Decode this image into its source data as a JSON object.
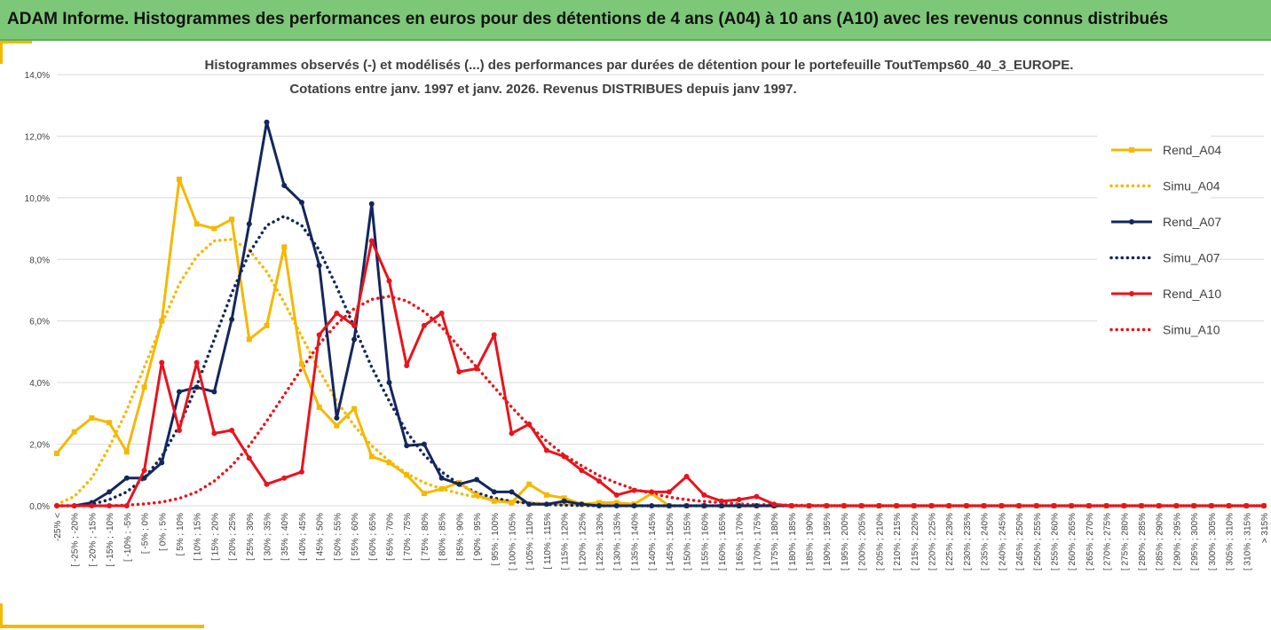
{
  "header": {
    "title": "ADAM Informe. Histogrammes des performances en euros pour des détentions de 4 ans (A04) à 10 ans (A10) avec les revenus connus distribués"
  },
  "colors": {
    "header_bg": "#7dc878",
    "accent": "#f5b800",
    "a04": "#f5b800",
    "a07": "#14275c",
    "a10": "#e8141c",
    "grid": "#d9d9d9"
  },
  "chart_data": {
    "type": "line",
    "title_line1": "Histogrammes observés (-) et modélisés (...) des performances par durées de détention pour le portefeuille ToutTemps60_40_3_EUROPE.",
    "title_line2": "Cotations entre janv. 1997 et janv. 2026. Revenus DISTRIBUES depuis janv 1997.",
    "ylim": [
      0,
      14
    ],
    "yticks": [
      "0,0%",
      "2,0%",
      "4,0%",
      "6,0%",
      "8,0%",
      "10,0%",
      "12,0%",
      "14,0%"
    ],
    "categories": [
      "-25% <",
      "[ -25% ; -20%",
      "[ -20% ; -15%",
      "[ -15% ; -10%",
      "[ -10% ; -5%",
      "[ -5% ; 0%",
      "[ 0% ; 5%",
      "[ 5% ; 10%",
      "[ 10% ; 15%",
      "[ 15% ; 20%",
      "[ 20% ; 25%",
      "[ 25% ; 30%",
      "[ 30% ; 35%",
      "[ 35% ; 40%",
      "[ 40% ; 45%",
      "[ 45% ; 50%",
      "[ 50% ; 55%",
      "[ 55% ; 60%",
      "[ 60% ; 65%",
      "[ 65% ; 70%",
      "[ 70% ; 75%",
      "[ 75% ; 80%",
      "[ 80% ; 85%",
      "[ 85% ; 90%",
      "[ 90% ; 95%",
      "[ 95% ; 100%",
      "[ 100% ; 105%",
      "[ 105% ; 110%",
      "[ 110% ; 115%",
      "[ 115% ; 120%",
      "[ 120% ; 125%",
      "[ 125% ; 130%",
      "[ 130% ; 135%",
      "[ 135% ; 140%",
      "[ 140% ; 145%",
      "[ 145% ; 150%",
      "[ 150% ; 155%",
      "[ 155% ; 160%",
      "[ 160% ; 165%",
      "[ 165% ; 170%",
      "[ 170% ; 175%",
      "[ 175% ; 180%",
      "[ 180% ; 185%",
      "[ 185% ; 190%",
      "[ 190% ; 195%",
      "[ 195% ; 200%",
      "[ 200% ; 205%",
      "[ 205% ; 210%",
      "[ 210% ; 215%",
      "[ 215% ; 220%",
      "[ 220% ; 225%",
      "[ 225% ; 230%",
      "[ 230% ; 235%",
      "[ 235% ; 240%",
      "[ 240% ; 245%",
      "[ 245% ; 250%",
      "[ 250% ; 255%",
      "[ 255% ; 260%",
      "[ 260% ; 265%",
      "[ 265% ; 270%",
      "[ 270% ; 275%",
      "[ 275% ; 280%",
      "[ 280% ; 285%",
      "[ 285% ; 290%",
      "[ 290% ; 295%",
      "[ 295% ; 300%",
      "[ 300% ; 305%",
      "[ 305% ; 310%",
      "[ 310% ; 315%",
      "> 315%"
    ],
    "legend_position": "right",
    "series": [
      {
        "name": "Rend_A04",
        "style": "solid",
        "marker": "square",
        "color": "#f5b800",
        "values": [
          1.7,
          2.4,
          2.85,
          2.7,
          1.75,
          3.85,
          6.0,
          10.6,
          9.15,
          9.0,
          9.3,
          5.4,
          5.85,
          8.4,
          4.6,
          3.2,
          2.6,
          3.15,
          1.6,
          1.4,
          1.0,
          0.4,
          0.55,
          0.75,
          0.35,
          0.15,
          0.1,
          0.7,
          0.35,
          0.25,
          0.05,
          0.1,
          0.1,
          0.05,
          0.4,
          0.0,
          0,
          0,
          0,
          0,
          0,
          0,
          0,
          0,
          0,
          0,
          0,
          0,
          0,
          0,
          0,
          0,
          0,
          0,
          0,
          0,
          0,
          0,
          0,
          0,
          0,
          0,
          0,
          0,
          0,
          0,
          0,
          0,
          0,
          0
        ]
      },
      {
        "name": "Simu_A04",
        "style": "dotted",
        "marker": "none",
        "color": "#f5b800",
        "values": [
          0.05,
          0.3,
          0.9,
          1.9,
          3.1,
          4.5,
          5.9,
          7.2,
          8.1,
          8.6,
          8.65,
          8.3,
          7.6,
          6.6,
          5.5,
          4.4,
          3.4,
          2.6,
          1.95,
          1.45,
          1.05,
          0.75,
          0.55,
          0.4,
          0.28,
          0.2,
          0.14,
          0.1,
          0.07,
          0.05,
          0.03,
          0.02,
          0.01,
          0.01,
          0.0,
          0,
          0,
          0,
          0,
          0,
          0,
          0,
          0,
          0,
          0,
          0,
          0,
          0,
          0,
          0,
          0,
          0,
          0,
          0,
          0,
          0,
          0,
          0,
          0,
          0,
          0,
          0,
          0,
          0,
          0,
          0,
          0,
          0,
          0,
          0
        ]
      },
      {
        "name": "Rend_A07",
        "style": "solid",
        "marker": "circle",
        "color": "#14275c",
        "values": [
          0,
          0,
          0.1,
          0.45,
          0.9,
          0.9,
          1.4,
          3.7,
          3.85,
          3.7,
          6.05,
          9.15,
          12.45,
          10.4,
          9.85,
          7.8,
          2.85,
          5.4,
          9.8,
          4.0,
          1.95,
          2.0,
          0.9,
          0.7,
          0.85,
          0.45,
          0.45,
          0.05,
          0.05,
          0.15,
          0.05,
          0.0,
          0.0,
          0.0,
          0,
          0,
          0,
          0,
          0,
          0,
          0,
          0,
          0,
          0,
          0,
          0,
          0,
          0,
          0,
          0,
          0,
          0,
          0,
          0,
          0,
          0,
          0,
          0,
          0,
          0,
          0,
          0,
          0,
          0,
          0,
          0,
          0,
          0,
          0,
          0
        ]
      },
      {
        "name": "Simu_A07",
        "style": "dotted",
        "marker": "none",
        "color": "#14275c",
        "values": [
          0,
          0,
          0.05,
          0.2,
          0.45,
          0.9,
          1.6,
          2.6,
          3.9,
          5.4,
          6.9,
          8.2,
          9.1,
          9.4,
          9.1,
          8.3,
          7.1,
          5.8,
          4.5,
          3.4,
          2.4,
          1.65,
          1.1,
          0.7,
          0.42,
          0.25,
          0.14,
          0.08,
          0.04,
          0.02,
          0.01,
          0.0,
          0,
          0,
          0,
          0,
          0,
          0,
          0,
          0,
          0,
          0,
          0,
          0,
          0,
          0,
          0,
          0,
          0,
          0,
          0,
          0,
          0,
          0,
          0,
          0,
          0,
          0,
          0,
          0,
          0,
          0,
          0,
          0,
          0,
          0,
          0,
          0,
          0,
          0
        ]
      },
      {
        "name": "Rend_A10",
        "style": "solid",
        "marker": "circle",
        "color": "#e8141c",
        "values": [
          0,
          0,
          0,
          0,
          0,
          1.15,
          4.65,
          2.45,
          4.65,
          2.35,
          2.45,
          1.55,
          0.7,
          0.9,
          1.1,
          5.55,
          6.25,
          5.85,
          8.6,
          7.3,
          4.55,
          5.85,
          6.25,
          4.35,
          4.45,
          5.55,
          2.35,
          2.65,
          1.8,
          1.6,
          1.15,
          0.8,
          0.35,
          0.5,
          0.45,
          0.45,
          0.95,
          0.35,
          0.15,
          0.2,
          0.3,
          0.05,
          0,
          0,
          0,
          0,
          0,
          0,
          0,
          0,
          0,
          0,
          0,
          0,
          0,
          0,
          0,
          0,
          0,
          0,
          0,
          0,
          0,
          0,
          0,
          0,
          0,
          0,
          0,
          0
        ]
      },
      {
        "name": "Simu_A10",
        "style": "dotted",
        "marker": "none",
        "color": "#e8141c",
        "values": [
          0,
          0,
          0,
          0,
          0.02,
          0.06,
          0.12,
          0.24,
          0.45,
          0.8,
          1.3,
          1.95,
          2.75,
          3.6,
          4.45,
          5.25,
          5.9,
          6.4,
          6.7,
          6.8,
          6.65,
          6.3,
          5.8,
          5.15,
          4.5,
          3.85,
          3.2,
          2.6,
          2.1,
          1.65,
          1.3,
          0.98,
          0.74,
          0.54,
          0.4,
          0.28,
          0.2,
          0.14,
          0.1,
          0.06,
          0.04,
          0.03,
          0.02,
          0.01,
          0.01,
          0,
          0,
          0,
          0,
          0,
          0,
          0,
          0,
          0,
          0,
          0,
          0,
          0,
          0,
          0,
          0,
          0,
          0,
          0,
          0,
          0,
          0,
          0,
          0,
          0
        ]
      }
    ]
  }
}
